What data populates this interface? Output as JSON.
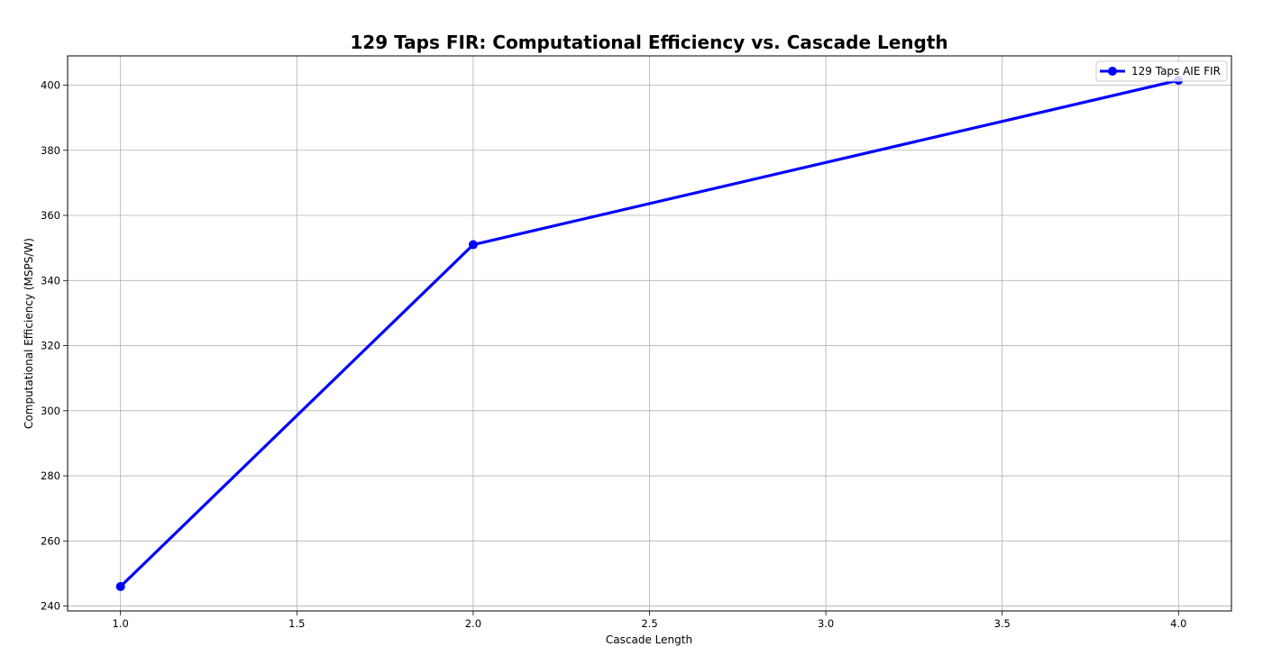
{
  "chart_data": {
    "type": "line",
    "title": "129 Taps FIR: Computational Efficiency vs. Cascade Length",
    "xlabel": "Cascade Length",
    "ylabel": "Computational Efficiency (MSPS/W)",
    "xlim": [
      0.85,
      4.15
    ],
    "ylim": [
      238.5,
      409
    ],
    "xticks": [
      1.0,
      1.5,
      2.0,
      2.5,
      3.0,
      3.5,
      4.0
    ],
    "xtick_labels": [
      "1.0",
      "1.5",
      "2.0",
      "2.5",
      "3.0",
      "3.5",
      "4.0"
    ],
    "yticks": [
      240,
      260,
      280,
      300,
      320,
      340,
      360,
      380,
      400
    ],
    "ytick_labels": [
      "240",
      "260",
      "280",
      "300",
      "320",
      "340",
      "360",
      "380",
      "400"
    ],
    "grid": true,
    "legend_position": "top-right",
    "series": [
      {
        "name": "129 Taps AIE FIR",
        "color": "#0000ff",
        "marker": "circle",
        "x": [
          1,
          2,
          4
        ],
        "y": [
          246,
          351,
          401.5
        ]
      }
    ]
  }
}
